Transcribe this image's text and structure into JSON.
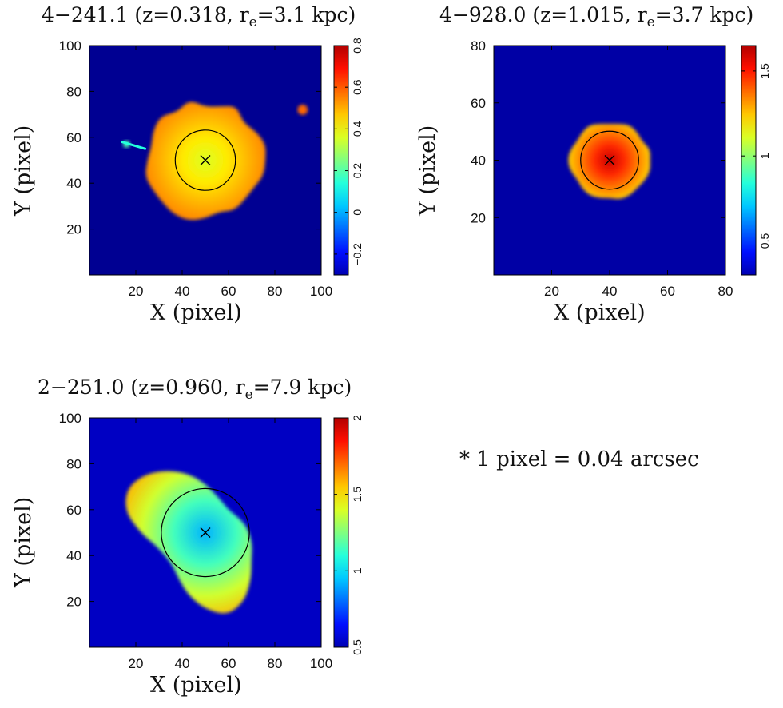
{
  "note": "* 1 pixel = 0.04 arcsec",
  "chart_data": [
    {
      "type": "heatmap",
      "name_prefix": "4−241.1 (z=0.318, r",
      "name_sub": "e",
      "name_suffix": "=3.1 kpc)",
      "xlabel": "X (pixel)",
      "ylabel": "Y (pixel)",
      "xlim": [
        0,
        100
      ],
      "ylim": [
        0,
        100
      ],
      "xticks": [
        20,
        40,
        60,
        80,
        100
      ],
      "yticks": [
        20,
        40,
        60,
        80,
        100
      ],
      "colorbar": {
        "range": [
          -0.3,
          0.8
        ],
        "ticks": [
          -0.2,
          0,
          0.2,
          0.4,
          0.6,
          0.8
        ],
        "tick_labels": [
          "−0.2",
          "0",
          "0.2",
          "0.4",
          "0.6",
          "0.8"
        ]
      },
      "center": [
        50,
        50
      ],
      "re_circle_radius": 13,
      "background_value": -0.28,
      "blob": {
        "radii": [
          26,
          27,
          25,
          23,
          27,
          24,
          23,
          27,
          24,
          27,
          26,
          24,
          25,
          27,
          26,
          26,
          27,
          27,
          25,
          23,
          25,
          24,
          24,
          26
        ],
        "center_value": 0.35,
        "edge_value": 0.52
      },
      "extras": [
        {
          "x": 92,
          "y": 72,
          "r": 2.2,
          "value": 0.55
        },
        {
          "x": 16,
          "y": 57,
          "r": 1.5,
          "value": 0.2
        }
      ],
      "extra_segments": [
        {
          "from": [
            14,
            58
          ],
          "to": [
            24,
            55
          ],
          "value": 0.15
        }
      ]
    },
    {
      "type": "heatmap",
      "name_prefix": "4−928.0 (z=1.015, r",
      "name_sub": "e",
      "name_suffix": "=3.7 kpc)",
      "xlabel": "X (pixel)",
      "ylabel": "Y (pixel)",
      "xlim": [
        0,
        80
      ],
      "ylim": [
        0,
        80
      ],
      "xticks": [
        20,
        40,
        60,
        80
      ],
      "yticks": [
        20,
        40,
        60,
        80
      ],
      "colorbar": {
        "range": [
          0.3,
          1.65
        ],
        "ticks": [
          0.5,
          1,
          1.5
        ],
        "tick_labels": [
          "0.5",
          "1",
          "1.5"
        ]
      },
      "center": [
        40,
        40
      ],
      "re_circle_radius": 10,
      "background_value": 0.35,
      "blob": {
        "radii": [
          14,
          14.5,
          13,
          13.5,
          14,
          13,
          12.5,
          13,
          14,
          13.5,
          13,
          14,
          14.5,
          14,
          13,
          13.5,
          14,
          13.5,
          13,
          14,
          14,
          13.5,
          14,
          14.5
        ],
        "center_value": 1.55,
        "edge_value": 1.2
      },
      "extras": [],
      "extra_segments": []
    },
    {
      "type": "heatmap",
      "name_prefix": "2−251.0 (z=0.960, r",
      "name_sub": "e",
      "name_suffix": "=7.9 kpc)",
      "xlabel": "X (pixel)",
      "ylabel": "Y (pixel)",
      "xlim": [
        0,
        100
      ],
      "ylim": [
        0,
        100
      ],
      "xticks": [
        20,
        40,
        60,
        80,
        100
      ],
      "yticks": [
        20,
        40,
        60,
        80,
        100
      ],
      "colorbar": {
        "range": [
          0.5,
          2.0
        ],
        "ticks": [
          0.5,
          1,
          1.5,
          2
        ],
        "tick_labels": [
          "0.5",
          "1",
          "1.5",
          "2"
        ]
      },
      "center": [
        50,
        50
      ],
      "re_circle_radius": 19,
      "background_value": 0.6,
      "blob": {
        "radii": [
          19,
          17,
          15,
          14,
          15,
          17,
          21,
          26,
          31,
          36,
          39,
          36,
          28,
          22,
          20,
          20,
          23,
          28,
          33,
          37,
          34,
          28,
          23,
          21
        ],
        "center_value": 0.95,
        "edge_value": 1.55
      },
      "extras": [],
      "extra_segments": []
    }
  ]
}
